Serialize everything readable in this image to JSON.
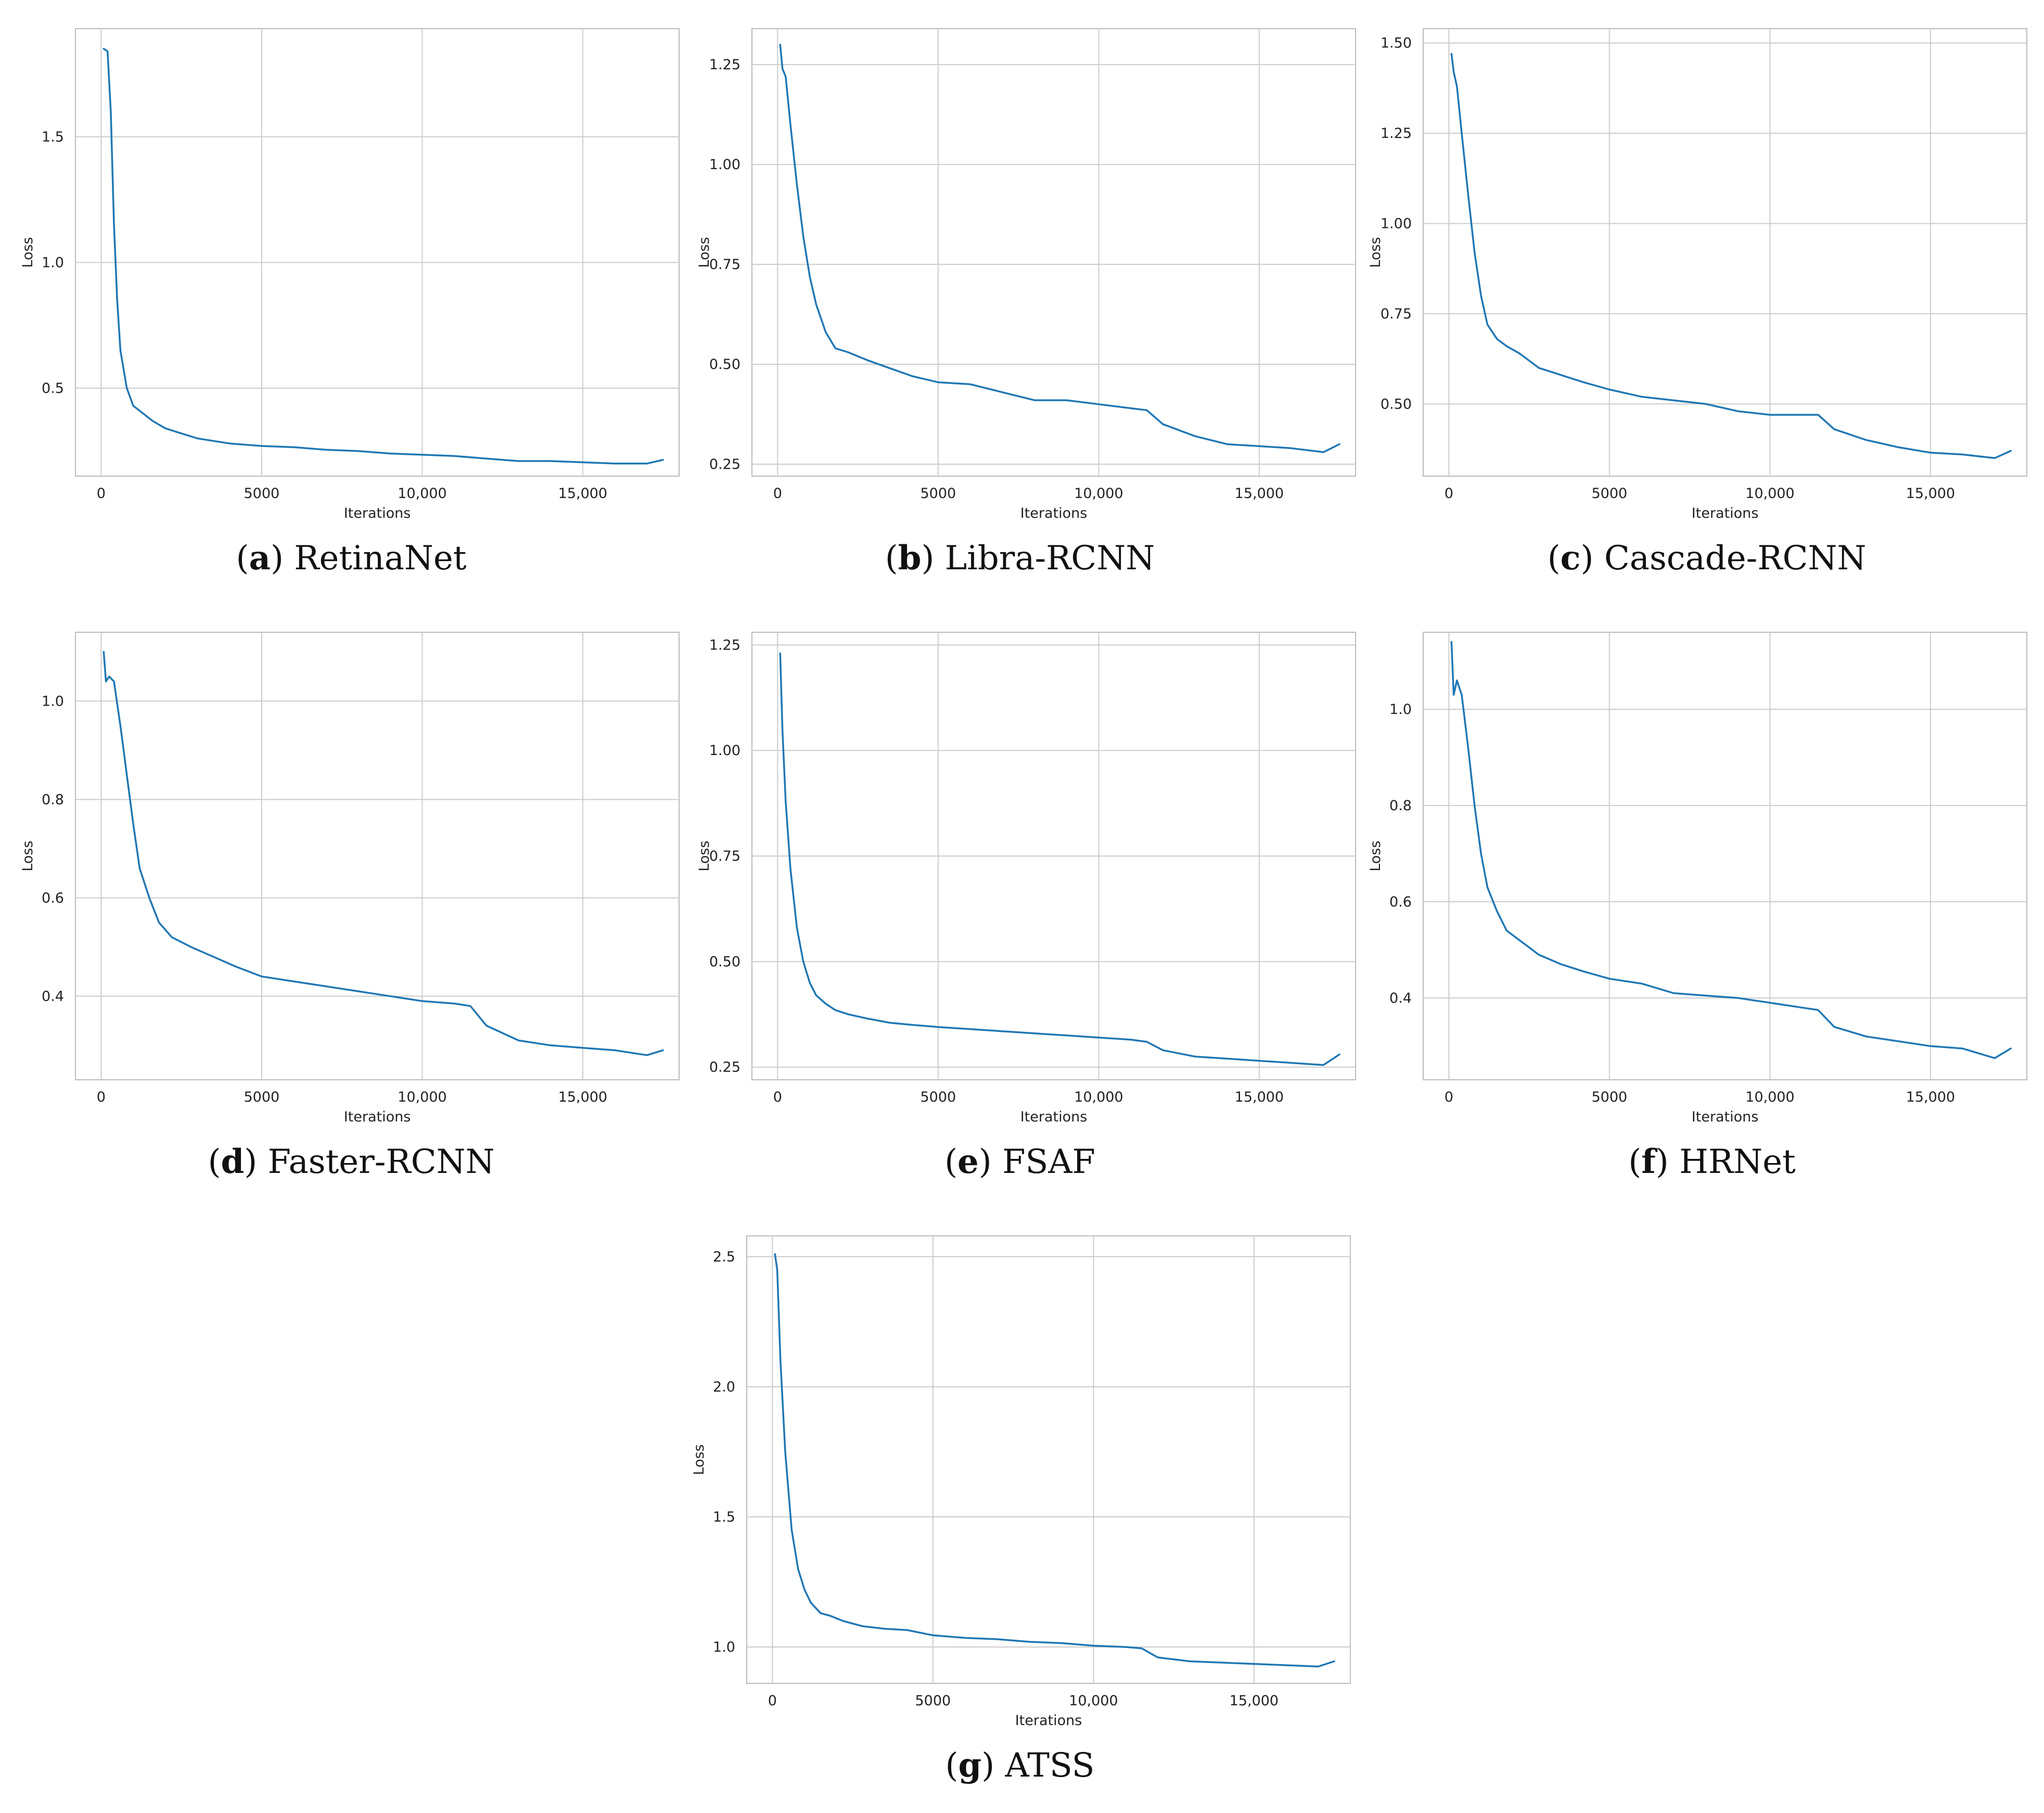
{
  "line_color": "#1f77b4",
  "grid_color": "#cccccc",
  "frame_color": "#bbbbbb",
  "chart_data": [
    {
      "id": "a",
      "type": "line",
      "caption_letter": "a",
      "caption_title": "RetinaNet",
      "xlabel": "Iterations",
      "ylabel": "Loss",
      "xlim": [
        -800,
        18000
      ],
      "ylim": [
        0.15,
        1.93
      ],
      "xticks": [
        0,
        5000,
        10000,
        15000
      ],
      "xtick_labels": [
        "0",
        "5000",
        "10,000",
        "15,000"
      ],
      "yticks": [
        0.5,
        1.0,
        1.5
      ],
      "ytick_labels": [
        "0.5",
        "1.0",
        "1.5"
      ],
      "series": [
        {
          "name": "loss",
          "x": [
            80,
            200,
            300,
            400,
            500,
            600,
            800,
            1000,
            1300,
            1600,
            2000,
            2500,
            3000,
            4000,
            5000,
            6000,
            7000,
            8000,
            9000,
            10000,
            11000,
            12000,
            13000,
            14000,
            15000,
            16000,
            17000,
            17500
          ],
          "y": [
            1.85,
            1.84,
            1.6,
            1.15,
            0.85,
            0.65,
            0.5,
            0.43,
            0.4,
            0.37,
            0.34,
            0.32,
            0.3,
            0.28,
            0.27,
            0.265,
            0.255,
            0.25,
            0.24,
            0.235,
            0.23,
            0.22,
            0.21,
            0.21,
            0.205,
            0.2,
            0.2,
            0.215
          ]
        }
      ]
    },
    {
      "id": "b",
      "type": "line",
      "caption_letter": "b",
      "caption_title": "Libra-RCNN",
      "xlabel": "Iterations",
      "ylabel": "Loss",
      "xlim": [
        -800,
        18000
      ],
      "ylim": [
        0.22,
        1.34
      ],
      "xticks": [
        0,
        5000,
        10000,
        15000
      ],
      "xtick_labels": [
        "0",
        "5000",
        "10,000",
        "15,000"
      ],
      "yticks": [
        0.25,
        0.5,
        0.75,
        1.0,
        1.25
      ],
      "ytick_labels": [
        "0.25",
        "0.50",
        "0.75",
        "1.00",
        "1.25"
      ],
      "series": [
        {
          "name": "loss",
          "x": [
            80,
            150,
            250,
            400,
            600,
            800,
            1000,
            1200,
            1500,
            1800,
            2200,
            2800,
            3500,
            4200,
            5000,
            6000,
            7000,
            8000,
            9000,
            10000,
            11000,
            11500,
            12000,
            13000,
            14000,
            15000,
            16000,
            17000,
            17500
          ],
          "y": [
            1.3,
            1.24,
            1.22,
            1.1,
            0.95,
            0.82,
            0.72,
            0.65,
            0.58,
            0.54,
            0.53,
            0.51,
            0.49,
            0.47,
            0.455,
            0.45,
            0.43,
            0.41,
            0.41,
            0.4,
            0.39,
            0.385,
            0.35,
            0.32,
            0.3,
            0.295,
            0.29,
            0.28,
            0.3
          ]
        }
      ]
    },
    {
      "id": "c",
      "type": "line",
      "caption_letter": "c",
      "caption_title": "Cascade-RCNN",
      "xlabel": "Iterations",
      "ylabel": "Loss",
      "xlim": [
        -800,
        18000
      ],
      "ylim": [
        0.3,
        1.54
      ],
      "xticks": [
        0,
        5000,
        10000,
        15000
      ],
      "xtick_labels": [
        "0",
        "5000",
        "10,000",
        "15,000"
      ],
      "yticks": [
        0.5,
        0.75,
        1.0,
        1.25,
        1.5
      ],
      "ytick_labels": [
        "0.50",
        "0.75",
        "1.00",
        "1.25",
        "1.50"
      ],
      "series": [
        {
          "name": "loss",
          "x": [
            80,
            150,
            250,
            400,
            600,
            800,
            1000,
            1200,
            1500,
            1800,
            2200,
            2800,
            3500,
            4200,
            5000,
            6000,
            7000,
            8000,
            9000,
            10000,
            11000,
            11500,
            12000,
            13000,
            14000,
            15000,
            16000,
            17000,
            17500
          ],
          "y": [
            1.47,
            1.42,
            1.38,
            1.25,
            1.08,
            0.92,
            0.8,
            0.72,
            0.68,
            0.66,
            0.64,
            0.6,
            0.58,
            0.56,
            0.54,
            0.52,
            0.51,
            0.5,
            0.48,
            0.47,
            0.47,
            0.47,
            0.43,
            0.4,
            0.38,
            0.365,
            0.36,
            0.35,
            0.37
          ]
        }
      ]
    },
    {
      "id": "d",
      "type": "line",
      "caption_letter": "d",
      "caption_title": "Faster-RCNN",
      "xlabel": "Iterations",
      "ylabel": "Loss",
      "xlim": [
        -800,
        18000
      ],
      "ylim": [
        0.23,
        1.14
      ],
      "xticks": [
        0,
        5000,
        10000,
        15000
      ],
      "xtick_labels": [
        "0",
        "5000",
        "10,000",
        "15,000"
      ],
      "yticks": [
        0.4,
        0.6,
        0.8,
        1.0
      ],
      "ytick_labels": [
        "0.4",
        "0.6",
        "0.8",
        "1.0"
      ],
      "series": [
        {
          "name": "loss",
          "x": [
            80,
            150,
            250,
            400,
            600,
            800,
            1000,
            1200,
            1500,
            1800,
            2200,
            2800,
            3500,
            4200,
            5000,
            6000,
            7000,
            8000,
            9000,
            10000,
            11000,
            11500,
            12000,
            13000,
            14000,
            15000,
            16000,
            17000,
            17500
          ],
          "y": [
            1.1,
            1.04,
            1.05,
            1.04,
            0.95,
            0.85,
            0.75,
            0.66,
            0.6,
            0.55,
            0.52,
            0.5,
            0.48,
            0.46,
            0.44,
            0.43,
            0.42,
            0.41,
            0.4,
            0.39,
            0.385,
            0.38,
            0.34,
            0.31,
            0.3,
            0.295,
            0.29,
            0.28,
            0.29
          ]
        }
      ]
    },
    {
      "id": "e",
      "type": "line",
      "caption_letter": "e",
      "caption_title": "FSAF",
      "xlabel": "Iterations",
      "ylabel": "Loss",
      "xlim": [
        -800,
        18000
      ],
      "ylim": [
        0.22,
        1.28
      ],
      "xticks": [
        0,
        5000,
        10000,
        15000
      ],
      "xtick_labels": [
        "0",
        "5000",
        "10,000",
        "15,000"
      ],
      "yticks": [
        0.25,
        0.5,
        0.75,
        1.0,
        1.25
      ],
      "ytick_labels": [
        "0.25",
        "0.50",
        "0.75",
        "1.00",
        "1.25"
      ],
      "series": [
        {
          "name": "loss",
          "x": [
            80,
            150,
            250,
            400,
            600,
            800,
            1000,
            1200,
            1500,
            1800,
            2200,
            2800,
            3500,
            4200,
            5000,
            6000,
            7000,
            8000,
            9000,
            10000,
            11000,
            11500,
            12000,
            13000,
            14000,
            15000,
            16000,
            17000,
            17500
          ],
          "y": [
            1.23,
            1.05,
            0.88,
            0.72,
            0.58,
            0.5,
            0.45,
            0.42,
            0.4,
            0.385,
            0.375,
            0.365,
            0.355,
            0.35,
            0.345,
            0.34,
            0.335,
            0.33,
            0.325,
            0.32,
            0.315,
            0.31,
            0.29,
            0.275,
            0.27,
            0.265,
            0.26,
            0.255,
            0.28
          ]
        }
      ]
    },
    {
      "id": "f",
      "type": "line",
      "caption_letter": "f",
      "caption_title": "HRNet",
      "xlabel": "Iterations",
      "ylabel": "Loss",
      "xlim": [
        -800,
        18000
      ],
      "ylim": [
        0.23,
        1.16
      ],
      "xticks": [
        0,
        5000,
        10000,
        15000
      ],
      "xtick_labels": [
        "0",
        "5000",
        "10,000",
        "15,000"
      ],
      "yticks": [
        0.4,
        0.6,
        0.8,
        1.0
      ],
      "ytick_labels": [
        "0.4",
        "0.6",
        "0.8",
        "1.0"
      ],
      "series": [
        {
          "name": "loss",
          "x": [
            80,
            150,
            250,
            400,
            600,
            800,
            1000,
            1200,
            1500,
            1800,
            2200,
            2800,
            3500,
            4200,
            5000,
            6000,
            7000,
            8000,
            9000,
            10000,
            11000,
            11500,
            12000,
            13000,
            14000,
            15000,
            16000,
            17000,
            17500
          ],
          "y": [
            1.14,
            1.03,
            1.06,
            1.03,
            0.92,
            0.8,
            0.7,
            0.63,
            0.58,
            0.54,
            0.52,
            0.49,
            0.47,
            0.455,
            0.44,
            0.43,
            0.41,
            0.405,
            0.4,
            0.39,
            0.38,
            0.375,
            0.34,
            0.32,
            0.31,
            0.3,
            0.295,
            0.275,
            0.295
          ]
        }
      ]
    },
    {
      "id": "g",
      "type": "line",
      "caption_letter": "g",
      "caption_title": "ATSS",
      "xlabel": "Iterations",
      "ylabel": "Loss",
      "xlim": [
        -800,
        18000
      ],
      "ylim": [
        0.86,
        2.58
      ],
      "xticks": [
        0,
        5000,
        10000,
        15000
      ],
      "xtick_labels": [
        "0",
        "5000",
        "10,000",
        "15,000"
      ],
      "yticks": [
        1.0,
        1.5,
        2.0,
        2.5
      ],
      "ytick_labels": [
        "1.0",
        "1.5",
        "2.0",
        "2.5"
      ],
      "series": [
        {
          "name": "loss",
          "x": [
            80,
            150,
            250,
            400,
            600,
            800,
            1000,
            1200,
            1500,
            1800,
            2200,
            2800,
            3500,
            4200,
            5000,
            6000,
            7000,
            8000,
            9000,
            10000,
            11000,
            11500,
            12000,
            13000,
            14000,
            15000,
            16000,
            17000,
            17500
          ],
          "y": [
            2.51,
            2.45,
            2.1,
            1.75,
            1.45,
            1.3,
            1.22,
            1.17,
            1.13,
            1.12,
            1.1,
            1.08,
            1.07,
            1.065,
            1.045,
            1.035,
            1.03,
            1.02,
            1.015,
            1.005,
            1.0,
            0.995,
            0.96,
            0.945,
            0.94,
            0.935,
            0.93,
            0.925,
            0.945
          ]
        }
      ]
    }
  ]
}
